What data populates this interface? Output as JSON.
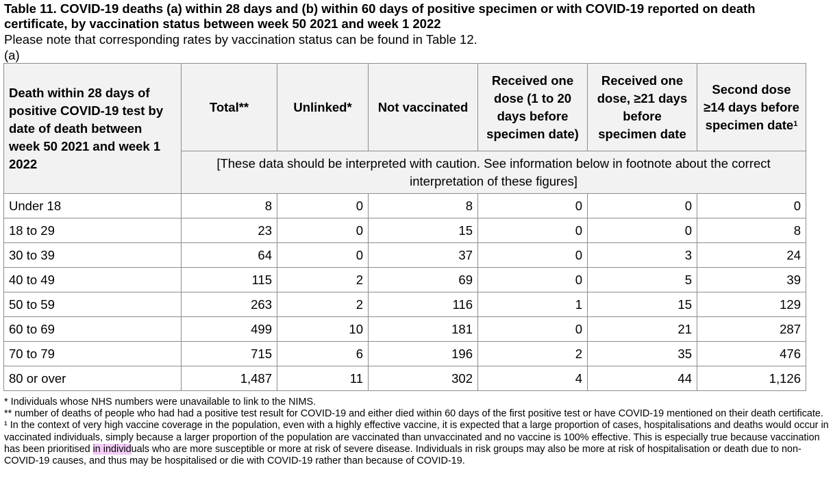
{
  "title": "Table 11. COVID-19 deaths (a) within 28 days and (b) within 60 days of positive specimen or with COVID-19 reported on death certificate, by vaccination status between week 50 2021 and week 1 2022",
  "note": "Please note that corresponding rates by vaccination status can be found in Table 12.",
  "subtable_label": "(a)",
  "table": {
    "corner_header": "Death within 28 days of positive COVID-19 test by date of death between week 50 2021 and week 1 2022",
    "columns": [
      "Total**",
      "Unlinked*",
      "Not vaccinated",
      "Received one dose (1 to 20 days before specimen date)",
      "Received one dose, ≥21 days before specimen date",
      "Second dose ≥14 days before specimen date"
    ],
    "last_column_superscript": "1",
    "caution_text": "[These data should be interpreted with caution. See information below in footnote about the correct interpretation of these figures]",
    "rows": [
      {
        "label": "Under 18",
        "values": [
          "8",
          "0",
          "8",
          "0",
          "0",
          "0"
        ]
      },
      {
        "label": "18 to 29",
        "values": [
          "23",
          "0",
          "15",
          "0",
          "0",
          "8"
        ]
      },
      {
        "label": "30 to 39",
        "values": [
          "64",
          "0",
          "37",
          "0",
          "3",
          "24"
        ]
      },
      {
        "label": "40 to 49",
        "values": [
          "115",
          "2",
          "69",
          "0",
          "5",
          "39"
        ]
      },
      {
        "label": "50 to 59",
        "values": [
          "263",
          "2",
          "116",
          "1",
          "15",
          "129"
        ]
      },
      {
        "label": "60 to 69",
        "values": [
          "499",
          "10",
          "181",
          "0",
          "21",
          "287"
        ]
      },
      {
        "label": "70 to 79",
        "values": [
          "715",
          "6",
          "196",
          "2",
          "35",
          "476"
        ]
      },
      {
        "label": "80 or over",
        "values": [
          "1,487",
          "11",
          "302",
          "4",
          "44",
          "1,126"
        ]
      }
    ]
  },
  "footnotes": {
    "star": "* Individuals whose NHS numbers were unavailable to link to the NIMS.",
    "double_star": "** number of deaths of people who had had a positive test result for COVID-19 and either died within 60 days of the first positive test or have COVID-19 mentioned on their death certificate.",
    "one_before": "¹ In the context of very high vaccine coverage in the population, even with a highly effective vaccine, it is expected that a large proportion of cases, hospitalisations and deaths would occur in vaccinated individuals, simply because a larger proportion of the population are vaccinated than unvaccinated and no vaccine is 100% effective. This is especially true because vaccination has been prioritised ",
    "one_highlight": "in individ",
    "one_after": "uals who are more susceptible or more at risk of severe disease. Individuals in risk groups may also be more at risk of hospitalisation or death due to non-COVID-19 causes, and thus may be hospitalised or die with COVID-19 rather than because of COVID-19."
  },
  "colors": {
    "header_background": "#f2f2f2",
    "border": "#8c8c8c",
    "highlight": "#f3cdf6"
  }
}
